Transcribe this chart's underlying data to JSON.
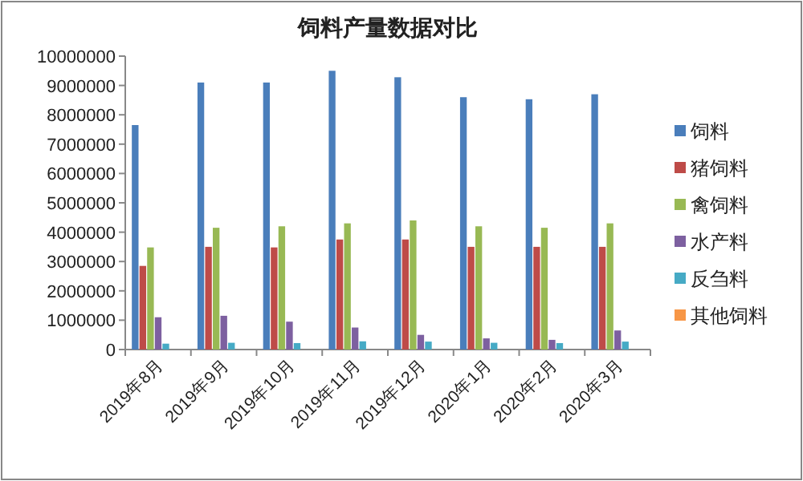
{
  "chart_data": {
    "type": "bar",
    "title": "饲料产量数据对比",
    "categories": [
      "2019年8月",
      "2019年9月",
      "2019年10月",
      "2019年11月",
      "2019年12月",
      "2020年1月",
      "2020年2月",
      "2020年3月"
    ],
    "series": [
      {
        "name": "饲料",
        "color": "#4a7ebb",
        "values": [
          7650000,
          9100000,
          9100000,
          9500000,
          9280000,
          8600000,
          8530000,
          8700000
        ]
      },
      {
        "name": "猪饲料",
        "color": "#be4b48",
        "values": [
          2850000,
          3500000,
          3480000,
          3750000,
          3750000,
          3500000,
          3500000,
          3500000
        ]
      },
      {
        "name": "禽饲料",
        "color": "#98b954",
        "values": [
          3480000,
          4150000,
          4200000,
          4300000,
          4400000,
          4200000,
          4150000,
          4300000
        ]
      },
      {
        "name": "水产料",
        "color": "#7d60a0",
        "values": [
          1100000,
          1150000,
          950000,
          750000,
          500000,
          380000,
          330000,
          650000
        ]
      },
      {
        "name": "反刍料",
        "color": "#46aac5",
        "values": [
          200000,
          230000,
          220000,
          280000,
          270000,
          230000,
          220000,
          270000
        ]
      },
      {
        "name": "其他饲料",
        "color": "#f79646",
        "values": [
          null,
          null,
          null,
          null,
          null,
          null,
          null,
          null
        ]
      }
    ],
    "ylim": [
      0,
      10000000
    ],
    "yticks": [
      0,
      1000000,
      2000000,
      3000000,
      4000000,
      5000000,
      6000000,
      7000000,
      8000000,
      9000000,
      10000000
    ],
    "grid": false,
    "legend": "right"
  }
}
